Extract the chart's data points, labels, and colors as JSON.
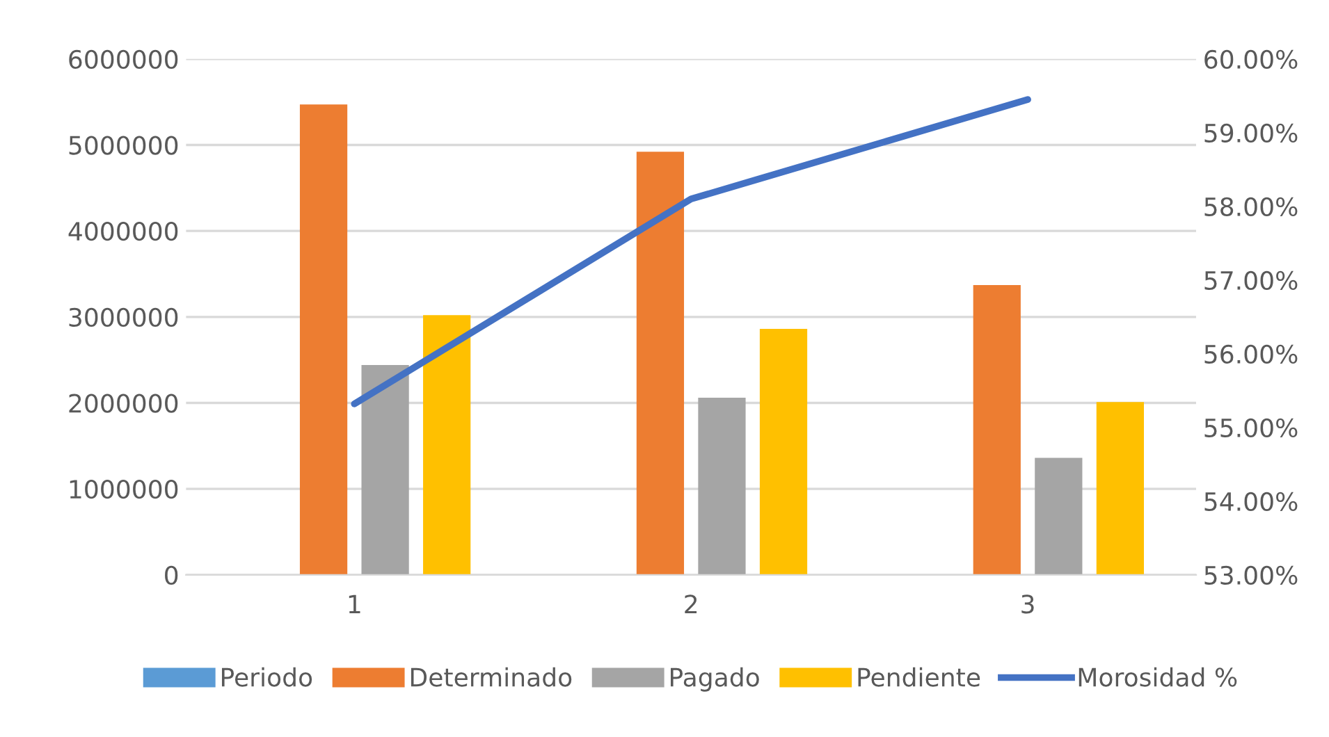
{
  "chart_data": {
    "type": "bar",
    "categories": [
      "1",
      "2",
      "3"
    ],
    "series": [
      {
        "name": "Periodo",
        "color": "#5b9bd5",
        "values": [
          0,
          0,
          0
        ]
      },
      {
        "name": "Determinado",
        "color": "#ed7d31",
        "values": [
          5470000,
          4920000,
          3370000
        ]
      },
      {
        "name": "Pagado",
        "color": "#a5a5a5",
        "values": [
          2440000,
          2060000,
          1360000
        ]
      },
      {
        "name": "Pendiente",
        "color": "#ffc000",
        "values": [
          3020000,
          2860000,
          2010000
        ]
      },
      {
        "name": "Morosidad %",
        "color": "#4472c4",
        "type": "line",
        "axis": "y2",
        "values": [
          55.32,
          58.1,
          59.45
        ]
      }
    ],
    "ylim": [
      0,
      6000000
    ],
    "yticks": [
      0,
      1000000,
      2000000,
      3000000,
      4000000,
      5000000,
      6000000
    ],
    "y2lim": [
      53,
      60
    ],
    "y2ticks": [
      {
        "value": 53,
        "label": "53.00%"
      },
      {
        "value": 54,
        "label": "54.00%"
      },
      {
        "value": 55,
        "label": "55.00%"
      },
      {
        "value": 56,
        "label": "56.00%"
      },
      {
        "value": 57,
        "label": "57.00%"
      },
      {
        "value": 58,
        "label": "58.00%"
      },
      {
        "value": 59,
        "label": "59.00%"
      },
      {
        "value": 60,
        "label": "60.00%"
      }
    ],
    "grid": "y",
    "legend": "bottom"
  }
}
